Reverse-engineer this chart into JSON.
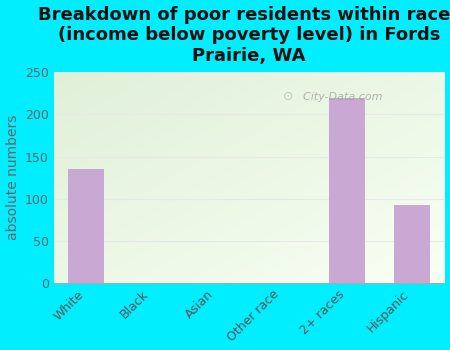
{
  "title": "Breakdown of poor residents within races\n(income below poverty level) in Fords\nPrairie, WA",
  "categories": [
    "White",
    "Black",
    "Asian",
    "Other race",
    "2+ races",
    "Hispanic"
  ],
  "values": [
    135,
    0,
    0,
    0,
    220,
    93
  ],
  "bar_color": "#c9a8d4",
  "ylabel": "absolute numbers",
  "ylim": [
    0,
    250
  ],
  "yticks": [
    0,
    50,
    100,
    150,
    200,
    250
  ],
  "background_color": "#00eeff",
  "plot_bg_topleft": "#e0f0d8",
  "plot_bg_bottomright": "#f8fff4",
  "title_fontsize": 13,
  "axis_label_fontsize": 10,
  "tick_fontsize": 9,
  "watermark": "City-Data.com",
  "gridline_color": "#e8e8e8"
}
